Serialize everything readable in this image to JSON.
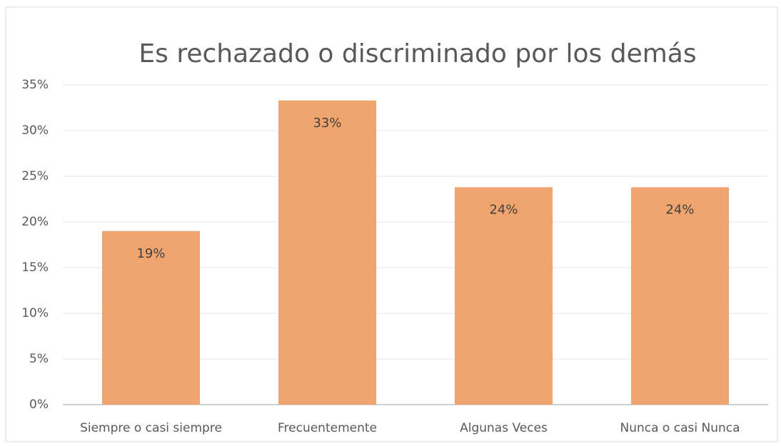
{
  "chart_data": {
    "type": "bar",
    "title": "Es rechazado o discriminado por los demás",
    "categories": [
      "Siempre o casi siempre",
      "Frecuentemente",
      "Algunas Veces",
      "Nunca o casi Nunca"
    ],
    "values": [
      19,
      33.3,
      23.8,
      23.8
    ],
    "value_labels": [
      "19%",
      "33%",
      "24%",
      "24%"
    ],
    "color": "#f0a56e",
    "ylim": [
      0,
      35
    ],
    "yticks": [
      {
        "value": 0,
        "label": "0%"
      },
      {
        "value": 5,
        "label": "5%"
      },
      {
        "value": 10,
        "label": "10%"
      },
      {
        "value": 15,
        "label": "15%"
      },
      {
        "value": 20,
        "label": "20%"
      },
      {
        "value": 25,
        "label": "25%"
      },
      {
        "value": 30,
        "label": "30%"
      },
      {
        "value": 35,
        "label": "35%"
      }
    ],
    "grid": true
  }
}
